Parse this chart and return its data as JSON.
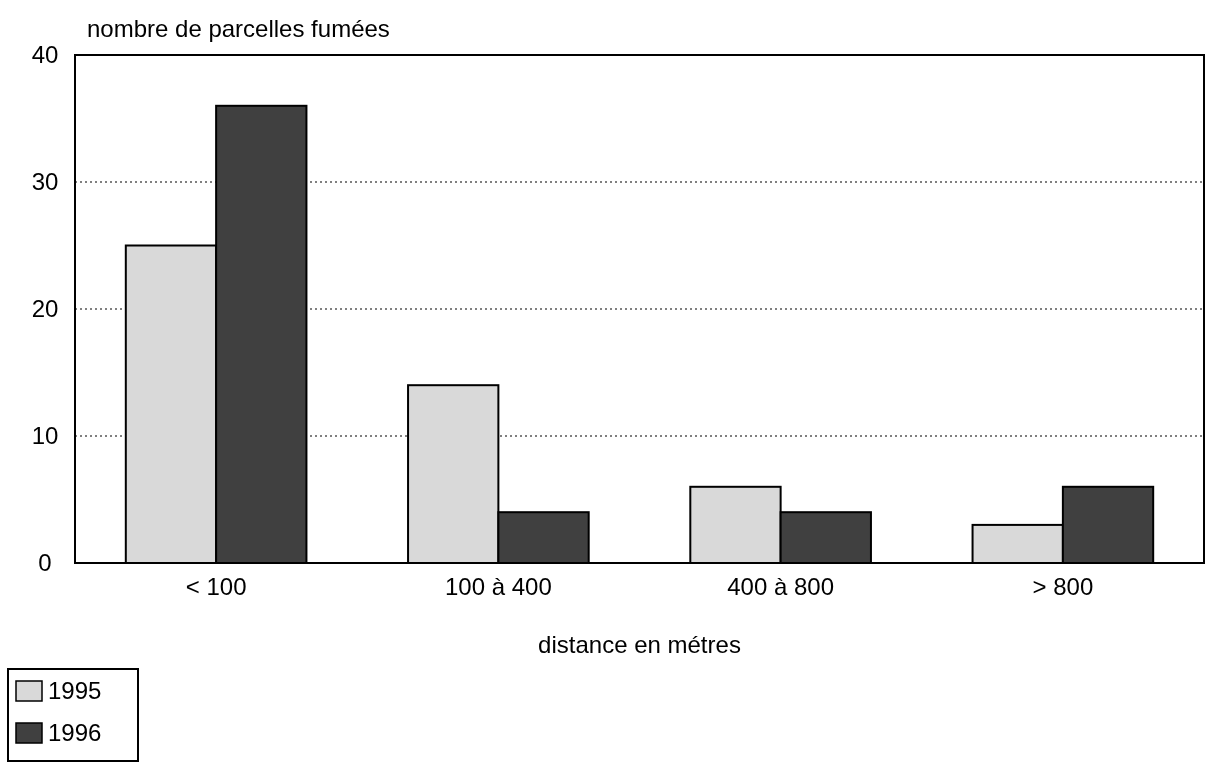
{
  "chart_data": {
    "type": "bar",
    "ylabel": "nombre de parcelles fumées",
    "xlabel": "distance en métres",
    "categories": [
      "< 100",
      "100 à 400",
      "400 à 800",
      "> 800"
    ],
    "series": [
      {
        "name": "1995",
        "color": "#d9d9d9",
        "values": [
          25,
          14,
          6,
          3
        ]
      },
      {
        "name": "1996",
        "color": "#404040",
        "values": [
          36,
          4,
          4,
          6
        ]
      }
    ],
    "ylim": [
      0,
      40
    ],
    "yticks": [
      0,
      10,
      20,
      30,
      40
    ],
    "grid": "y",
    "legend": "bottom left"
  }
}
